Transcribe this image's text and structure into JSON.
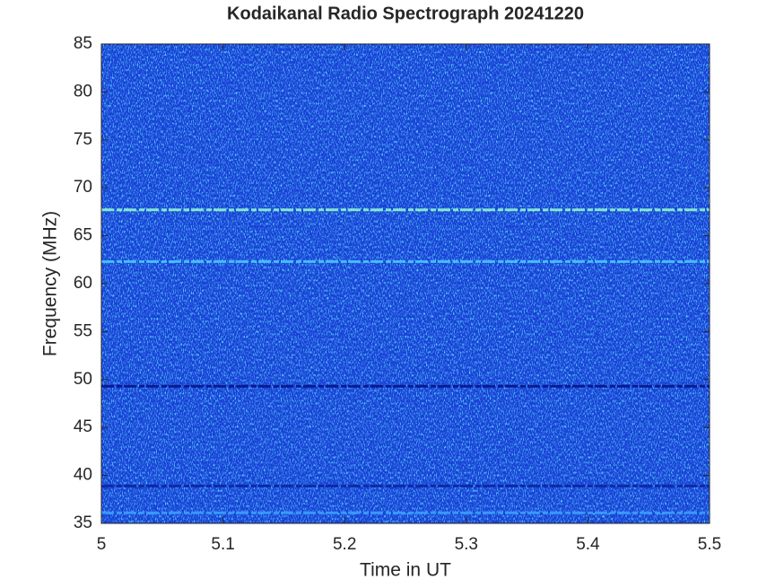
{
  "chart_data": {
    "type": "spectrogram",
    "title": "Kodaikanal Radio Spectrograph  20241220",
    "x_label": "Time in UT",
    "y_label": "Frequency (MHz)",
    "xlim": [
      5,
      5.5
    ],
    "xticks": [
      5,
      5.1,
      5.2,
      5.3,
      5.4,
      5.5
    ],
    "ylim": [
      35,
      85
    ],
    "yticks": [
      35,
      40,
      45,
      50,
      55,
      60,
      65,
      70,
      75,
      80,
      85
    ],
    "background_color": "#1a3fd6",
    "bands": [
      {
        "frequency": 67.7,
        "color": "#8ff5d0"
      },
      {
        "frequency": 62.3,
        "color": "#49c8ff"
      },
      {
        "frequency": 49.3,
        "color": "#06138a"
      },
      {
        "frequency": 38.9,
        "color": "#0c24a0"
      },
      {
        "frequency": 36.1,
        "color": "#3aa0ff"
      }
    ]
  }
}
